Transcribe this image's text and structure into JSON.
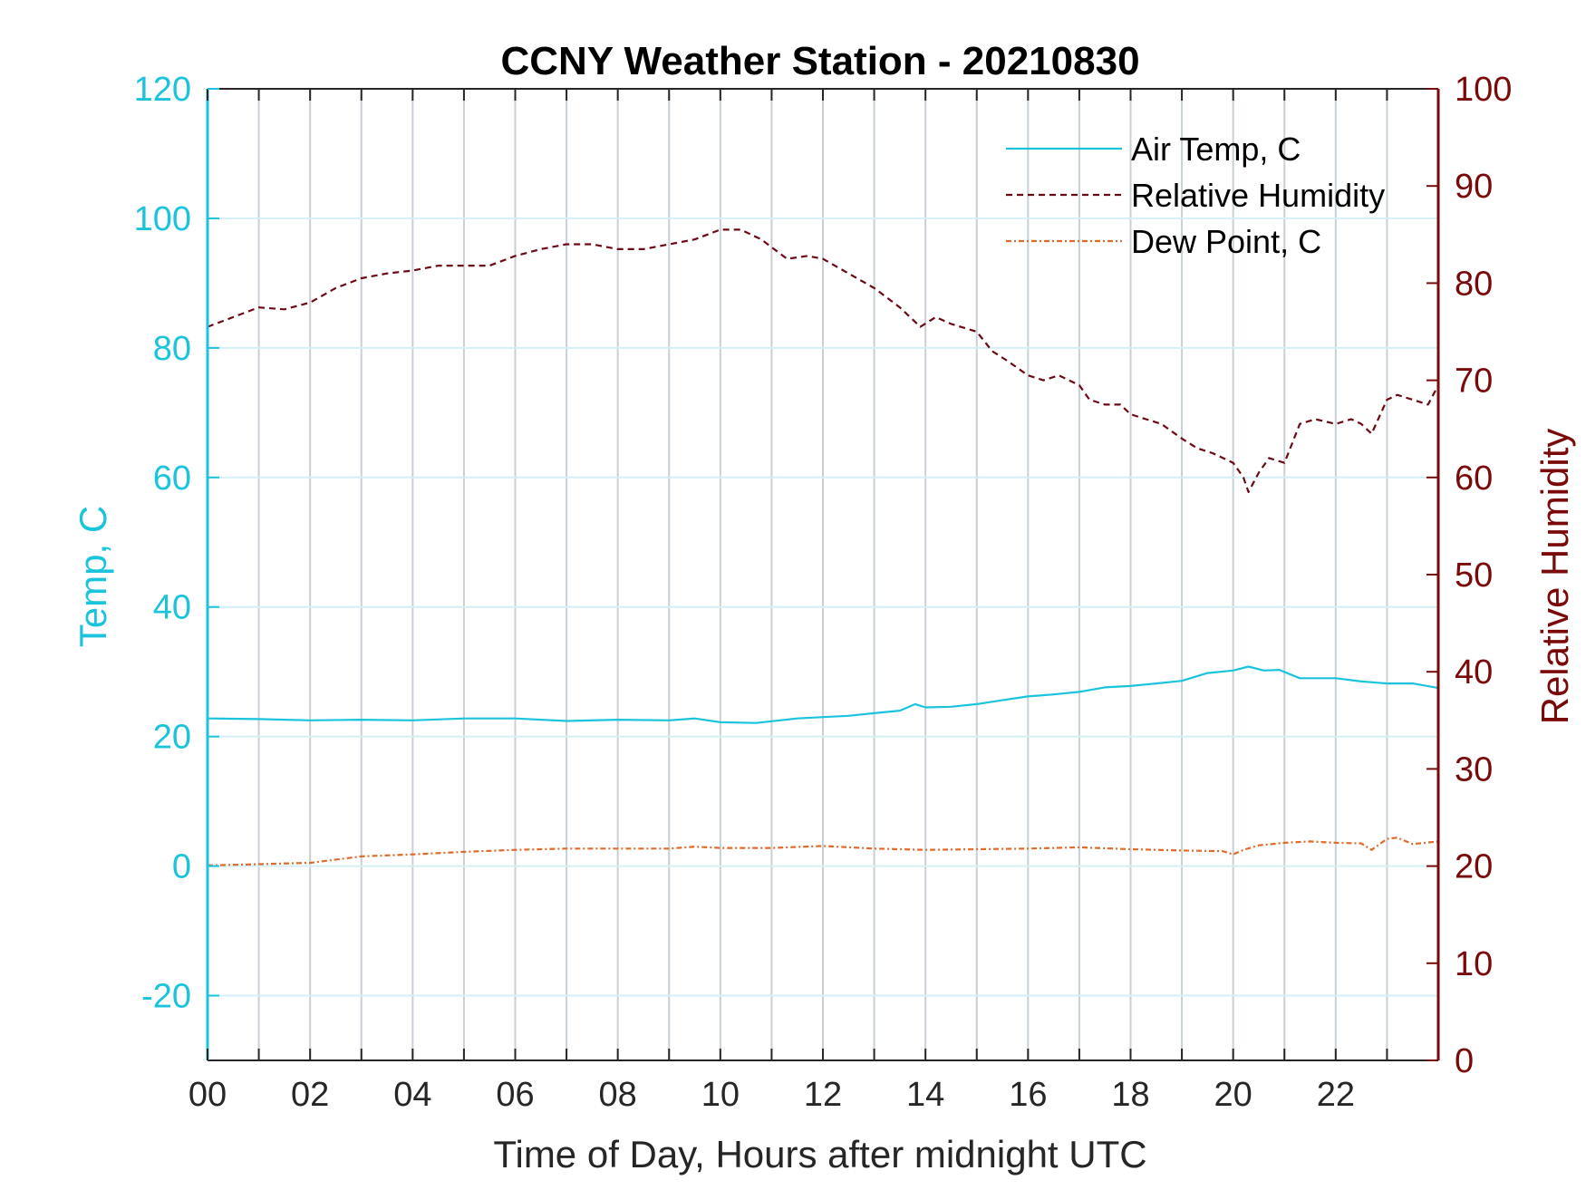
{
  "chart_data": {
    "type": "line",
    "title": "CCNY Weather Station - 20210830",
    "xlabel": "Time of Day, Hours after midnight UTC",
    "ylabel_left": "Temp, C",
    "ylabel_right": "Relative Humidity",
    "xlim": [
      0,
      24
    ],
    "ylim_left": [
      -30,
      120
    ],
    "ylim_right": [
      0,
      100
    ],
    "x_ticks": [
      0,
      2,
      4,
      6,
      8,
      10,
      12,
      14,
      16,
      18,
      20,
      22
    ],
    "x_tick_labels": [
      "00",
      "02",
      "04",
      "06",
      "08",
      "10",
      "12",
      "14",
      "16",
      "18",
      "20",
      "22"
    ],
    "left_ticks": [
      -20,
      0,
      20,
      40,
      60,
      80,
      100,
      120
    ],
    "right_ticks": [
      0,
      10,
      20,
      30,
      40,
      50,
      60,
      70,
      80,
      90,
      100
    ],
    "grid": true,
    "legend_position": "top-right",
    "colors": {
      "left_axis": "#1bc4dc",
      "right_axis": "#7a0a0a",
      "air_temp": "#1bc4dc",
      "relative_humidity": "#6b0a14",
      "dew_point": "#e06a2a",
      "grid": "#c8d0d6"
    },
    "series": [
      {
        "name": "Air Temp, C",
        "axis": "left",
        "style": "solid",
        "x": [
          0,
          1,
          2,
          3,
          4,
          5,
          6,
          7,
          8,
          9,
          9.5,
          10,
          10.7,
          11.5,
          12,
          12.5,
          13,
          13.5,
          13.8,
          14,
          14.5,
          15,
          15.5,
          16,
          16.5,
          17,
          17.5,
          18,
          18.5,
          19,
          19.5,
          20,
          20.3,
          20.6,
          20.9,
          21.3,
          21.6,
          22,
          22.5,
          23,
          23.5,
          24
        ],
        "values": [
          22.8,
          22.7,
          22.5,
          22.6,
          22.5,
          22.8,
          22.8,
          22.4,
          22.6,
          22.5,
          22.8,
          22.2,
          22.1,
          22.8,
          23.0,
          23.2,
          23.6,
          24.0,
          25.0,
          24.5,
          24.6,
          25.0,
          25.6,
          26.2,
          26.5,
          26.9,
          27.6,
          27.8,
          28.2,
          28.6,
          29.8,
          30.2,
          30.8,
          30.2,
          30.3,
          29.0,
          29.0,
          29.0,
          28.5,
          28.2,
          28.2,
          27.5
        ]
      },
      {
        "name": "Relative Humidity",
        "axis": "right",
        "style": "dashed",
        "x": [
          0,
          0.5,
          1,
          1.5,
          2,
          2.5,
          3,
          3.5,
          4,
          4.5,
          5,
          5.5,
          6,
          6.5,
          7,
          7.5,
          8,
          8.5,
          9,
          9.5,
          10,
          10.4,
          10.8,
          11.3,
          11.7,
          12,
          12.5,
          13,
          13.5,
          13.9,
          14.2,
          14.5,
          15,
          15.3,
          15.6,
          16,
          16.3,
          16.6,
          17,
          17.2,
          17.5,
          17.8,
          18,
          18.3,
          18.6,
          19,
          19.3,
          19.6,
          20,
          20.2,
          20.3,
          20.5,
          20.7,
          21,
          21.3,
          21.6,
          22,
          22.3,
          22.5,
          22.7,
          23,
          23.2,
          23.5,
          23.8,
          24
        ],
        "values": [
          75.5,
          76.5,
          77.5,
          77.3,
          78,
          79.5,
          80.5,
          81,
          81.3,
          81.8,
          81.8,
          81.8,
          82.8,
          83.5,
          84,
          84,
          83.5,
          83.5,
          84,
          84.5,
          85.5,
          85.5,
          84.5,
          82.5,
          82.8,
          82.5,
          81,
          79.5,
          77.5,
          75.5,
          76.5,
          75.8,
          75,
          73,
          72,
          70.5,
          70,
          70.5,
          69.5,
          68,
          67.5,
          67.5,
          66.5,
          66,
          65.5,
          64,
          63,
          62.5,
          61.5,
          60,
          58.5,
          60.5,
          62,
          61.5,
          65.5,
          66,
          65.5,
          66,
          65.5,
          64.5,
          68,
          68.5,
          68,
          67.5,
          69.5
        ]
      },
      {
        "name": "Dew Point, C",
        "axis": "left",
        "style": "dashdot",
        "x": [
          0,
          1,
          2,
          3,
          4,
          5,
          6,
          7,
          8,
          9,
          9.5,
          10,
          11,
          12,
          13,
          14,
          15,
          16,
          17,
          18,
          19,
          19.8,
          20,
          20.2,
          20.5,
          21,
          21.5,
          22,
          22.5,
          22.7,
          23,
          23.2,
          23.5,
          24
        ],
        "values": [
          0.1,
          0.3,
          0.5,
          1.5,
          1.8,
          2.2,
          2.5,
          2.7,
          2.7,
          2.7,
          3.0,
          2.8,
          2.8,
          3.1,
          2.7,
          2.5,
          2.6,
          2.7,
          2.9,
          2.6,
          2.4,
          2.3,
          1.8,
          2.5,
          3.2,
          3.6,
          3.8,
          3.6,
          3.5,
          2.5,
          4.2,
          4.4,
          3.4,
          3.8
        ]
      }
    ]
  }
}
